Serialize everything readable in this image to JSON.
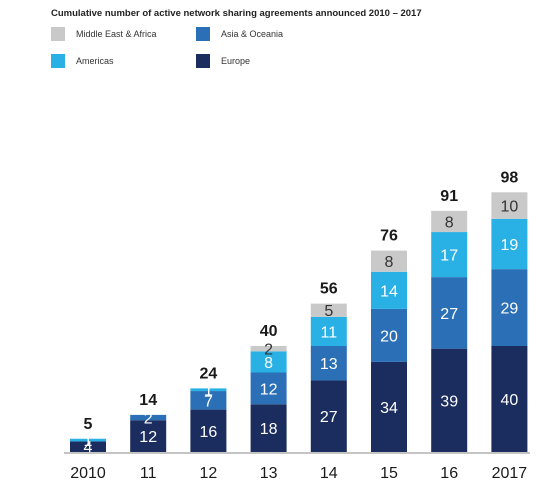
{
  "chart_data": {
    "type": "bar",
    "stacked": true,
    "title": "Cumulative number of active network sharing agreements announced 2010 – 2017",
    "categories": [
      "2010",
      "11",
      "12",
      "13",
      "14",
      "15",
      "16",
      "2017"
    ],
    "series": [
      {
        "name": "Europe",
        "color": "#1b2d5e",
        "values": [
          4,
          12,
          16,
          18,
          27,
          34,
          39,
          40
        ]
      },
      {
        "name": "Asia & Oceania",
        "color": "#2b70b6",
        "values": [
          0,
          2,
          7,
          12,
          13,
          20,
          27,
          29
        ]
      },
      {
        "name": "Americas",
        "color": "#29b1e6",
        "values": [
          1,
          0,
          1,
          8,
          11,
          14,
          17,
          19
        ]
      },
      {
        "name": "Middle East & Africa",
        "color": "#c9c9c9",
        "values": [
          0,
          0,
          0,
          2,
          5,
          8,
          8,
          10
        ]
      }
    ],
    "totals": [
      5,
      14,
      24,
      40,
      56,
      76,
      91,
      98
    ],
    "legend": [
      {
        "label": "Middle East & Africa",
        "color": "#c9c9c9"
      },
      {
        "label": "Asia & Oceania",
        "color": "#2b70b6"
      },
      {
        "label": "Americas",
        "color": "#29b1e6"
      },
      {
        "label": "Europe",
        "color": "#1b2d5e"
      }
    ],
    "grid": false,
    "legend_placement": "top-left"
  }
}
